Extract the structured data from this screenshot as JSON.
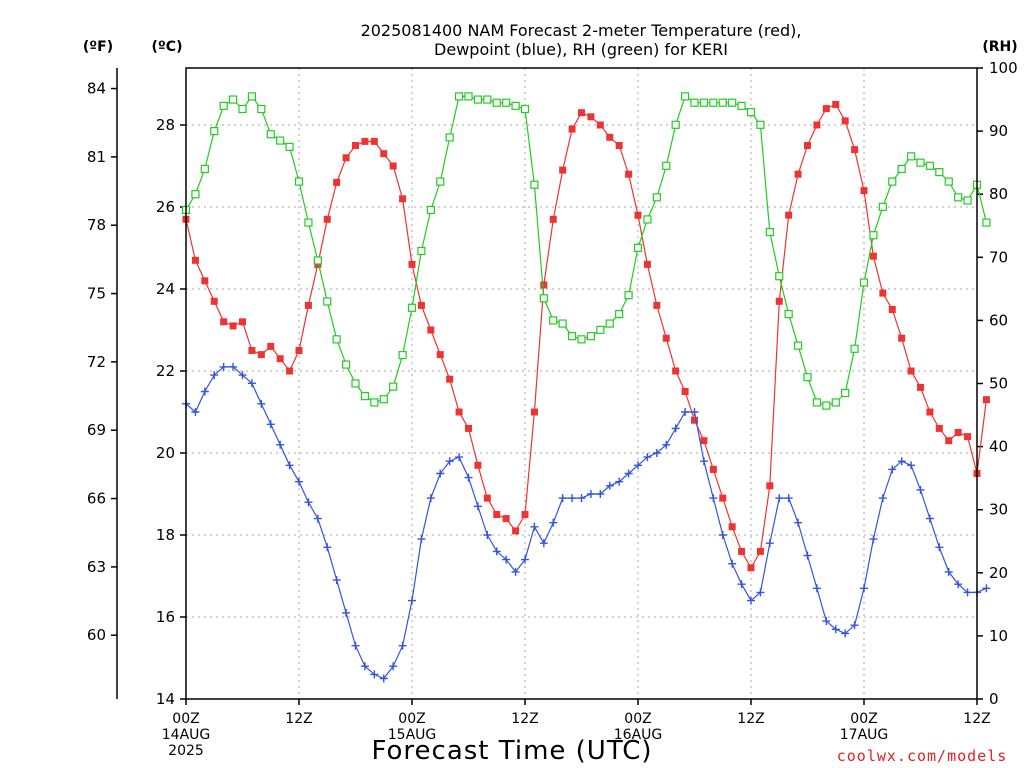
{
  "chart_data": {
    "type": "line",
    "title_line1": "2025081400 NAM Forecast 2-meter Temperature (red),",
    "title_line2": "Dewpoint (blue), RH (green) for KERI",
    "xlabel": "Forecast Time (UTC)",
    "credit": "coolwx.com/models",
    "unit_f": "(ºF)",
    "unit_c": "(ºC)",
    "unit_rh": "(RH)",
    "grid": true,
    "x_range": [
      0,
      84
    ],
    "x_ticks": [
      {
        "h": 0,
        "lines": [
          "00Z",
          "14AUG",
          "2025"
        ]
      },
      {
        "h": 12,
        "lines": [
          "12Z"
        ]
      },
      {
        "h": 24,
        "lines": [
          "00Z",
          "15AUG"
        ]
      },
      {
        "h": 36,
        "lines": [
          "12Z"
        ]
      },
      {
        "h": 48,
        "lines": [
          "00Z",
          "16AUG"
        ]
      },
      {
        "h": 60,
        "lines": [
          "12Z"
        ]
      },
      {
        "h": 72,
        "lines": [
          "00Z",
          "17AUG"
        ]
      },
      {
        "h": 84,
        "lines": [
          "12Z"
        ]
      }
    ],
    "c_range": [
      14,
      29.5
    ],
    "c_ticks": [
      "14",
      "16",
      "18",
      "20",
      "22",
      "24",
      "26",
      "28"
    ],
    "f_ticks": [
      "60",
      "63",
      "66",
      "69",
      "72",
      "75",
      "78",
      "81",
      "84"
    ],
    "rh_range": [
      0,
      100
    ],
    "rh_ticks": [
      "0",
      "10",
      "20",
      "30",
      "40",
      "50",
      "60",
      "70",
      "80",
      "90",
      "100"
    ],
    "series": [
      {
        "name": "Temperature",
        "color": "#ee3333",
        "marker": "filled-square",
        "units": "C",
        "values": [
          25.7,
          24.7,
          24.2,
          23.7,
          23.2,
          23.1,
          23.2,
          22.5,
          22.4,
          22.6,
          22.3,
          22.0,
          22.5,
          23.6,
          24.6,
          25.7,
          26.6,
          27.2,
          27.5,
          27.6,
          27.6,
          27.3,
          27.0,
          26.2,
          24.6,
          23.6,
          23.0,
          22.4,
          21.8,
          21.0,
          20.6,
          19.7,
          18.9,
          18.5,
          18.4,
          18.1,
          18.5,
          21.0,
          24.1,
          25.7,
          26.9,
          27.9,
          28.3,
          28.2,
          28.0,
          27.7,
          27.5,
          26.8,
          25.8,
          24.6,
          23.6,
          22.8,
          22.0,
          21.5,
          20.8,
          20.3,
          19.6,
          18.9,
          18.2,
          17.6,
          17.2,
          17.6,
          19.2,
          23.7,
          25.8,
          26.8,
          27.5,
          28.0,
          28.4,
          28.5,
          28.1,
          27.4,
          26.4,
          24.8,
          23.9,
          23.5,
          22.8,
          22.0,
          21.6,
          21.0,
          20.6,
          20.3,
          20.5,
          20.4,
          19.5,
          21.3
        ]
      },
      {
        "name": "Dewpoint",
        "color": "#3355dd",
        "marker": "plus",
        "units": "C",
        "values": [
          21.2,
          21.0,
          21.5,
          21.9,
          22.1,
          22.1,
          21.9,
          21.7,
          21.2,
          20.7,
          20.2,
          19.7,
          19.3,
          18.8,
          18.4,
          17.7,
          16.9,
          16.1,
          15.3,
          14.8,
          14.6,
          14.5,
          14.8,
          15.3,
          16.4,
          17.9,
          18.9,
          19.5,
          19.8,
          19.9,
          19.4,
          18.7,
          18.0,
          17.6,
          17.4,
          17.1,
          17.4,
          18.2,
          17.8,
          18.3,
          18.9,
          18.9,
          18.9,
          19.0,
          19.0,
          19.2,
          19.3,
          19.5,
          19.7,
          19.9,
          20.0,
          20.2,
          20.6,
          21.0,
          21.0,
          19.8,
          18.9,
          18.0,
          17.3,
          16.8,
          16.4,
          16.6,
          17.8,
          18.9,
          18.9,
          18.3,
          17.5,
          16.7,
          15.9,
          15.7,
          15.6,
          15.8,
          16.7,
          17.9,
          18.9,
          19.6,
          19.8,
          19.7,
          19.1,
          18.4,
          17.7,
          17.1,
          16.8,
          16.6,
          16.6,
          16.7
        ]
      },
      {
        "name": "RH",
        "color": "#22cc22",
        "marker": "open-square",
        "units": "percent",
        "values": [
          77.5,
          80,
          84,
          90,
          94,
          95,
          93.5,
          95.5,
          93.5,
          89.5,
          88.5,
          87.5,
          82,
          75.5,
          69.5,
          63,
          57,
          53,
          50,
          48,
          47,
          47.5,
          49.5,
          54.5,
          62,
          71,
          77.5,
          82,
          89,
          95.5,
          95.5,
          95,
          95,
          94.5,
          94.5,
          94,
          93.5,
          81.5,
          63.5,
          60,
          59.5,
          57.5,
          57,
          57.5,
          58.5,
          59.5,
          61,
          64,
          71.5,
          76,
          79.5,
          84.5,
          91,
          95.5,
          94.5,
          94.5,
          94.5,
          94.5,
          94.5,
          94,
          93,
          91,
          74,
          67,
          61,
          56,
          51,
          47,
          46.5,
          47,
          48.5,
          55.5,
          66,
          73.5,
          78,
          82,
          84,
          86,
          85,
          84.5,
          83.5,
          82,
          79.5,
          79,
          81.5,
          75.5
        ]
      }
    ]
  }
}
